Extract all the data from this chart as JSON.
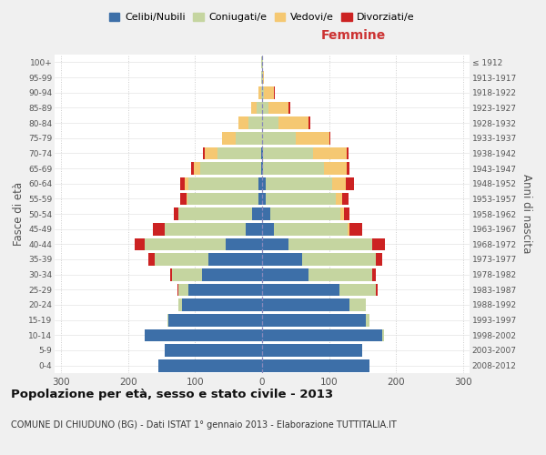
{
  "age_groups": [
    "0-4",
    "5-9",
    "10-14",
    "15-19",
    "20-24",
    "25-29",
    "30-34",
    "35-39",
    "40-44",
    "45-49",
    "50-54",
    "55-59",
    "60-64",
    "65-69",
    "70-74",
    "75-79",
    "80-84",
    "85-89",
    "90-94",
    "95-99",
    "100+"
  ],
  "birth_years": [
    "2008-2012",
    "2003-2007",
    "1998-2002",
    "1993-1997",
    "1988-1992",
    "1983-1987",
    "1978-1982",
    "1973-1977",
    "1968-1972",
    "1963-1967",
    "1958-1962",
    "1953-1957",
    "1948-1952",
    "1943-1947",
    "1938-1942",
    "1933-1937",
    "1928-1932",
    "1923-1927",
    "1918-1922",
    "1913-1917",
    "≤ 1912"
  ],
  "male": {
    "celibi": [
      155,
      145,
      175,
      140,
      120,
      110,
      90,
      80,
      55,
      25,
      15,
      6,
      5,
      2,
      1,
      0,
      0,
      0,
      0,
      0,
      0
    ],
    "coniugati": [
      0,
      0,
      0,
      2,
      5,
      15,
      45,
      80,
      120,
      120,
      110,
      105,
      105,
      90,
      65,
      40,
      20,
      8,
      2,
      1,
      1
    ],
    "vedovi": [
      0,
      0,
      0,
      0,
      0,
      0,
      0,
      0,
      0,
      0,
      0,
      2,
      5,
      10,
      20,
      20,
      15,
      8,
      3,
      0,
      0
    ],
    "divorziati": [
      0,
      0,
      0,
      0,
      0,
      1,
      3,
      10,
      15,
      18,
      7,
      9,
      8,
      4,
      2,
      0,
      0,
      0,
      0,
      0,
      0
    ]
  },
  "female": {
    "nubili": [
      160,
      150,
      180,
      155,
      130,
      115,
      70,
      60,
      40,
      18,
      12,
      5,
      5,
      2,
      1,
      0,
      0,
      0,
      0,
      0,
      0
    ],
    "coniugate": [
      0,
      0,
      2,
      5,
      25,
      55,
      95,
      110,
      125,
      110,
      105,
      105,
      100,
      90,
      75,
      50,
      25,
      10,
      3,
      1,
      1
    ],
    "vedove": [
      0,
      0,
      0,
      0,
      0,
      0,
      0,
      0,
      0,
      2,
      5,
      10,
      20,
      35,
      50,
      50,
      45,
      30,
      15,
      2,
      0
    ],
    "divorziate": [
      0,
      0,
      0,
      0,
      0,
      2,
      5,
      10,
      18,
      20,
      8,
      9,
      12,
      4,
      3,
      2,
      2,
      2,
      1,
      0,
      0
    ]
  },
  "colors": {
    "celibi": "#3d6fa8",
    "coniugati": "#c5d5a0",
    "vedovi": "#f5c872",
    "divorziati": "#cc2222"
  },
  "xlim": 310,
  "title": "Popolazione per età, sesso e stato civile - 2013",
  "subtitle": "COMUNE DI CHIUDUNO (BG) - Dati ISTAT 1° gennaio 2013 - Elaborazione TUTTITALIA.IT",
  "ylabel_left": "Fasce di età",
  "ylabel_right": "Anni di nascita",
  "xlabel_female": "Femmine",
  "legend_labels": [
    "Celibi/Nubili",
    "Coniugati/e",
    "Vedovi/e",
    "Divorziati/e"
  ],
  "bg_color": "#f0f0f0",
  "plot_bg": "#ffffff"
}
